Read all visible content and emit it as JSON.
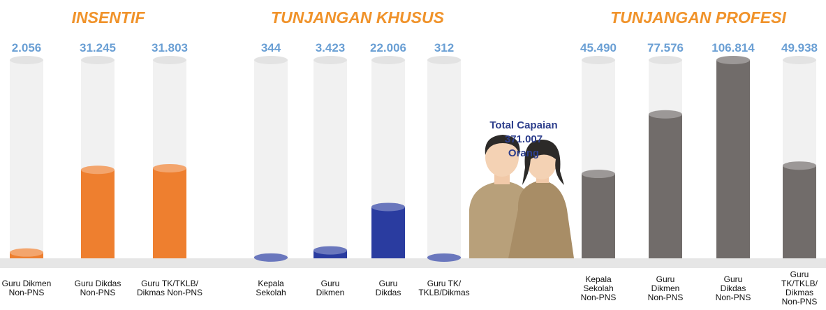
{
  "chart_data": [
    {
      "type": "bar",
      "title": "INSENTIF",
      "categories": [
        "Guru Dikmen\nNon-PNS",
        "Guru Dikdas\nNon-PNS",
        "Guru TK/TKLB/\nDikmas Non-PNS"
      ],
      "values": [
        2056,
        31245,
        31803
      ],
      "value_labels": [
        "2.056",
        "31.245",
        "31.803"
      ],
      "color": "#ee7f2f",
      "ylim": [
        0,
        70000
      ]
    },
    {
      "type": "bar",
      "title": "TUNJANGAN KHUSUS",
      "categories": [
        "Kepala\nSekolah",
        "Guru\nDikmen",
        "Guru\nDikdas",
        "Guru TK/\nTKLB/Dikmas"
      ],
      "values": [
        344,
        3423,
        22006,
        312
      ],
      "value_labels": [
        "344",
        "3.423",
        "22.006",
        "312"
      ],
      "color": "#2a3ca0",
      "ylim": [
        0,
        85000
      ]
    },
    {
      "type": "bar",
      "title": "TUNJANGAN PROFESI",
      "categories": [
        "Kepala\nSekolah\nNon-PNS",
        "Guru\nDikmen\nNon-PNS",
        "Guru\nDikdas\nNon-PNS",
        "Guru\nTK/TKLB/\nDikmas\nNon-PNS"
      ],
      "values": [
        45490,
        77576,
        106814,
        49938
      ],
      "value_labels": [
        "45.490",
        "77.576",
        "106.814",
        "49.938"
      ],
      "color": "#716c6a",
      "ylim": [
        0,
        106814
      ]
    }
  ],
  "total": {
    "label": "Total Capaian",
    "value": 371007,
    "value_label": "371.007",
    "unit": "Orang"
  }
}
